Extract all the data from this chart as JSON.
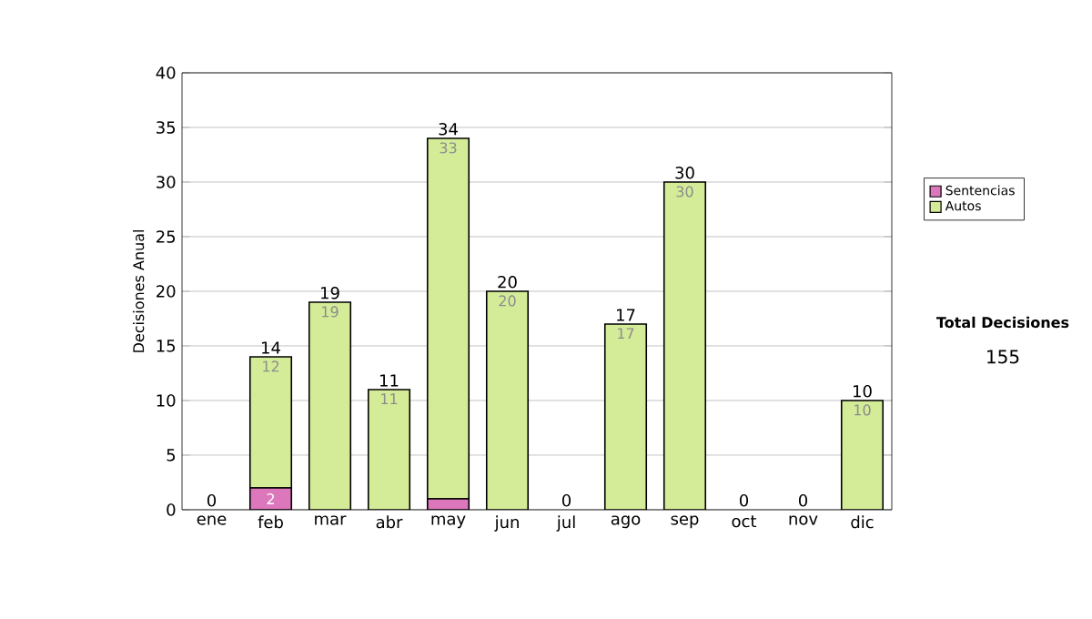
{
  "chart_data": {
    "type": "bar",
    "stacked": true,
    "ylabel": "Decisiones Anual",
    "categories": [
      "ene",
      "feb",
      "mar",
      "abr",
      "may",
      "jun",
      "jul",
      "ago",
      "sep",
      "oct",
      "nov",
      "dic"
    ],
    "series": [
      {
        "name": "Sentencias",
        "color": "#dd77bb",
        "values": [
          0,
          2,
          0,
          0,
          1,
          0,
          0,
          0,
          0,
          0,
          0,
          0
        ],
        "value_labels": [
          null,
          "2",
          null,
          null,
          null,
          null,
          null,
          null,
          null,
          null,
          null,
          null
        ]
      },
      {
        "name": "Autos",
        "color": "#d4ec98",
        "values": [
          0,
          12,
          19,
          11,
          33,
          20,
          0,
          17,
          30,
          0,
          0,
          10
        ],
        "value_labels": [
          null,
          "12",
          "19",
          "11",
          "33",
          "20",
          null,
          "17",
          "30",
          null,
          null,
          "10"
        ]
      }
    ],
    "totals": [
      "0",
      "14",
      "19",
      "11",
      "34",
      "20",
      "0",
      "17",
      "30",
      "0",
      "0",
      "10"
    ],
    "ylim": [
      0,
      40
    ],
    "yticks": [
      0,
      5,
      10,
      15,
      20,
      25,
      30,
      35,
      40
    ],
    "grid": "y",
    "legend": "right",
    "annotations": [
      "Total Decisiones",
      "155"
    ]
  }
}
